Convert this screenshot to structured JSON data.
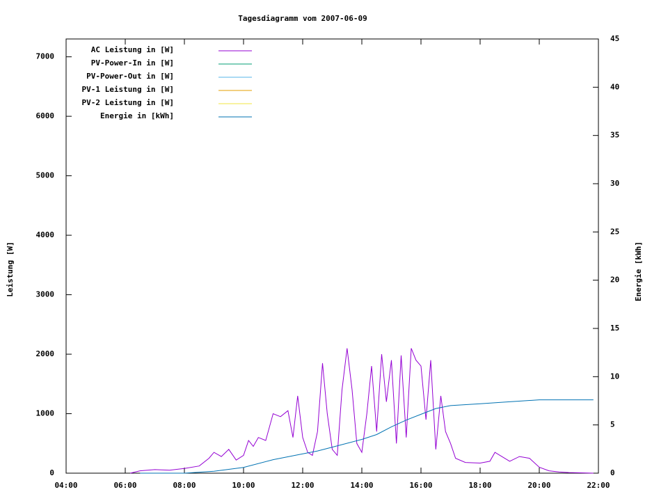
{
  "chart_data": {
    "type": "line",
    "title": "Tagesdiagramm vom 2007-06-09",
    "ylabel": "Leistung [W]",
    "y2label": "Energie [kWh]",
    "xlim": [
      4,
      22
    ],
    "xticks": [
      {
        "value": 4,
        "label": "04:00"
      },
      {
        "value": 6,
        "label": "06:00"
      },
      {
        "value": 8,
        "label": "08:00"
      },
      {
        "value": 10,
        "label": "10:00"
      },
      {
        "value": 12,
        "label": "12:00"
      },
      {
        "value": 14,
        "label": "14:00"
      },
      {
        "value": 16,
        "label": "16:00"
      },
      {
        "value": 18,
        "label": "18:00"
      },
      {
        "value": 20,
        "label": "20:00"
      },
      {
        "value": 22,
        "label": "22:00"
      }
    ],
    "ylim": [
      0,
      7300
    ],
    "yticks": [
      0,
      1000,
      2000,
      3000,
      4000,
      5000,
      6000,
      7000
    ],
    "y2lim": [
      0,
      45
    ],
    "y2ticks": [
      0,
      5,
      10,
      15,
      20,
      25,
      30,
      35,
      40,
      45
    ],
    "series": [
      {
        "name": "AC Leistung in [W]",
        "color": "#9400d3",
        "x": [
          6.17,
          6.5,
          7.0,
          7.5,
          8.0,
          8.5,
          8.83,
          9.0,
          9.25,
          9.5,
          9.75,
          10.0,
          10.17,
          10.33,
          10.5,
          10.75,
          11.0,
          11.25,
          11.5,
          11.67,
          11.83,
          12.0,
          12.17,
          12.33,
          12.5,
          12.67,
          12.83,
          13.0,
          13.17,
          13.33,
          13.5,
          13.67,
          13.83,
          14.0,
          14.17,
          14.33,
          14.5,
          14.67,
          14.83,
          15.0,
          15.17,
          15.33,
          15.5,
          15.67,
          15.83,
          16.0,
          16.17,
          16.33,
          16.5,
          16.67,
          16.83,
          17.0,
          17.17,
          17.5,
          18.0,
          18.33,
          18.5,
          18.67,
          19.0,
          19.33,
          19.67,
          20.0,
          20.33,
          20.67,
          21.0,
          21.5,
          21.83
        ],
        "values": [
          0,
          40,
          60,
          50,
          80,
          120,
          250,
          350,
          280,
          400,
          220,
          300,
          550,
          450,
          600,
          550,
          1000,
          950,
          1050,
          600,
          1300,
          600,
          350,
          300,
          700,
          1850,
          1000,
          400,
          300,
          1400,
          2100,
          1400,
          500,
          350,
          1000,
          1800,
          700,
          2000,
          1200,
          1900,
          500,
          1980,
          600,
          2100,
          1900,
          1800,
          900,
          1900,
          400,
          1300,
          700,
          500,
          250,
          180,
          170,
          200,
          350,
          300,
          200,
          280,
          250,
          100,
          40,
          20,
          10,
          5,
          0
        ]
      },
      {
        "name": "PV-Power-In in [W]",
        "color": "#009e73"
      },
      {
        "name": "PV-Power-Out in [W]",
        "color": "#56b4e9"
      },
      {
        "name": "PV-1 Leistung in [W]",
        "color": "#e69f00"
      },
      {
        "name": "PV-2 Leistung in [W]",
        "color": "#f0e442"
      },
      {
        "name": "Energie in [kWh]",
        "color": "#0072b2",
        "axis": "y2",
        "x": [
          6.5,
          8.0,
          9.0,
          10.0,
          11.0,
          12.0,
          12.5,
          13.0,
          14.0,
          14.5,
          15.0,
          15.5,
          16.0,
          16.5,
          17.0,
          18.0,
          19.0,
          20.0,
          21.83
        ],
        "values": [
          0,
          0,
          0.2,
          0.6,
          1.4,
          2.0,
          2.3,
          2.7,
          3.5,
          4.0,
          4.8,
          5.5,
          6.1,
          6.7,
          7.0,
          7.2,
          7.4,
          7.6,
          7.6
        ]
      }
    ]
  }
}
